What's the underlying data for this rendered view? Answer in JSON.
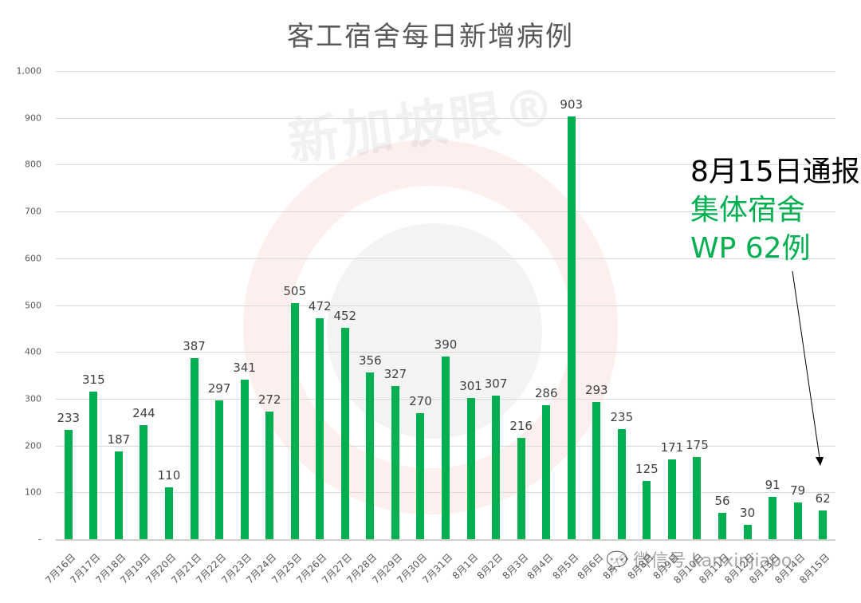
{
  "title": "客工宿舍每日新增病例",
  "annotation": {
    "line1": "8月15日通报",
    "line2": "集体宿舍",
    "line3": "WP 62例"
  },
  "watermark": {
    "text": "新加坡眼®",
    "wechat": "微信号 kanxinjiapo"
  },
  "colors": {
    "bar": "#00b050",
    "annotation_highlight": "#00b050",
    "title": "#595959"
  },
  "y_ticks": [
    "1,000",
    "900",
    "800",
    "700",
    "600",
    "500",
    "400",
    "300",
    "200",
    "100",
    "-"
  ],
  "chart_data": {
    "type": "bar",
    "title": "客工宿舍每日新增病例",
    "xlabel": "",
    "ylabel": "",
    "ylim": [
      0,
      1000
    ],
    "grid": true,
    "legend": "none",
    "categories": [
      "7月16日",
      "7月17日",
      "7月18日",
      "7月19日",
      "7月20日",
      "7月21日",
      "7月22日",
      "7月23日",
      "7月24日",
      "7月25日",
      "7月26日",
      "7月27日",
      "7月28日",
      "7月29日",
      "7月30日",
      "7月31日",
      "8月1日",
      "8月2日",
      "8月3日",
      "8月4日",
      "8月5日",
      "8月6日",
      "8月7日",
      "8月8日",
      "8月9日",
      "8月10日",
      "8月11日",
      "8月12日",
      "8月13日",
      "8月14日",
      "8月15日"
    ],
    "values": [
      233,
      315,
      187,
      244,
      110,
      387,
      297,
      341,
      272,
      505,
      472,
      452,
      356,
      327,
      270,
      390,
      301,
      307,
      216,
      286,
      903,
      293,
      235,
      125,
      171,
      175,
      56,
      30,
      91,
      79,
      62
    ],
    "annotations": [
      {
        "text": "8月15日通报 集体宿舍 WP 62例",
        "points_to": "8月15日"
      }
    ]
  }
}
